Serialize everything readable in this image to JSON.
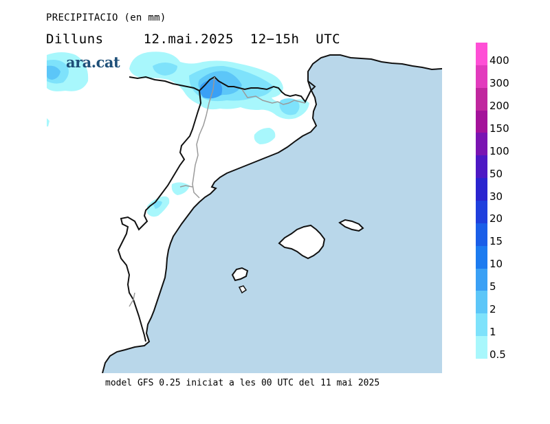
{
  "header": {
    "title": "PRECIPITACIO (en mm)",
    "day": "Dilluns",
    "datetime": "12.mai.2025  12−15h  UTC"
  },
  "logo": {
    "text": "ara.cat"
  },
  "footer": {
    "text": "model GFS 0.25 iniciat a les 00 UTC del 11 mai 2025"
  },
  "legend": {
    "levels": [
      {
        "label": "400",
        "color": "#ff4fd6"
      },
      {
        "label": "300",
        "color": "#e23bbd"
      },
      {
        "label": "200",
        "color": "#c0279e"
      },
      {
        "label": "150",
        "color": "#a4129a"
      },
      {
        "label": "100",
        "color": "#7a14b2"
      },
      {
        "label": "50",
        "color": "#4d18c4"
      },
      {
        "label": "30",
        "color": "#2a24cf"
      },
      {
        "label": "20",
        "color": "#1f3fdd"
      },
      {
        "label": "15",
        "color": "#1a5ee8"
      },
      {
        "label": "10",
        "color": "#1c7bf0"
      },
      {
        "label": "5",
        "color": "#3aa0f5"
      },
      {
        "label": "2",
        "color": "#5cc6f8"
      },
      {
        "label": "1",
        "color": "#7ee2fb"
      },
      {
        "label": "0.5",
        "color": "#a8f7fc"
      }
    ]
  },
  "map_colors": {
    "sea": "#b9d7ea",
    "land": "#ffffff",
    "coast": "#111111",
    "border": "#9a9a9a"
  }
}
